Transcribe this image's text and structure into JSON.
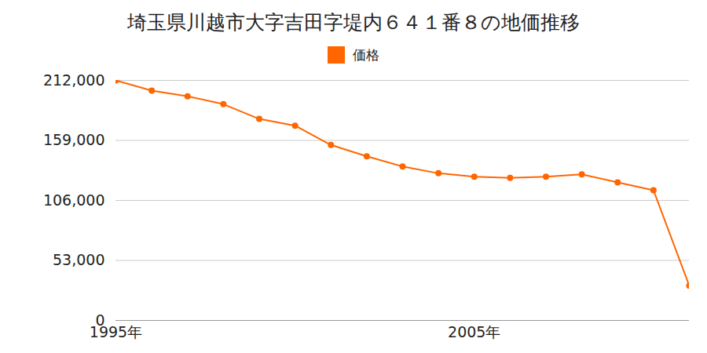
{
  "chart_data": {
    "type": "line",
    "title": "埼玉県川越市大字吉田字堤内６４１番８の地価推移",
    "x": [
      1995,
      1996,
      1997,
      1998,
      1999,
      2000,
      2001,
      2002,
      2003,
      2004,
      2005,
      2006,
      2007,
      2008,
      2009,
      2010,
      2011
    ],
    "series": [
      {
        "name": "価格",
        "color": "#ff6600",
        "marker": "circle",
        "values": [
          212000,
          203000,
          198000,
          191000,
          178000,
          172000,
          155000,
          145000,
          136000,
          130000,
          127000,
          126000,
          127000,
          129000,
          122000,
          115000,
          30600
        ]
      }
    ],
    "xlim": [
      1995,
      2011
    ],
    "xticks": [
      {
        "value": 1995,
        "label": "1995年"
      },
      {
        "value": 2005,
        "label": "2005年"
      }
    ],
    "ylim": [
      0,
      212000
    ],
    "yticks": [
      0,
      {
        "value": 53000,
        "label": "53,000"
      },
      {
        "value": 106000,
        "label": "106,000"
      },
      {
        "value": 159000,
        "label": "159,000"
      },
      {
        "value": 212000,
        "label": "212,000"
      }
    ],
    "grid": true,
    "legend": "top"
  }
}
